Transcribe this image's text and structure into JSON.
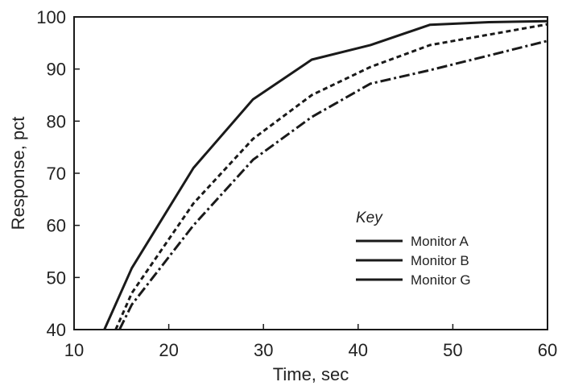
{
  "chart_data": {
    "type": "line",
    "xlabel": "Time, sec",
    "ylabel": "Response, pct",
    "xlim": [
      10,
      60
    ],
    "ylim": [
      40,
      100
    ],
    "xticks": [
      10,
      20,
      30,
      40,
      50,
      60
    ],
    "yticks": [
      40,
      50,
      60,
      70,
      80,
      90,
      100
    ],
    "grid": false,
    "legend": {
      "title": "Key",
      "placement": "lower-right",
      "entries": [
        "Monitor A",
        "Monitor B",
        "Monitor G"
      ]
    },
    "series": [
      {
        "name": "Monitor A",
        "style": "solid",
        "x": [
          13.2,
          16.1,
          22.6,
          28.9,
          35.1,
          41.3,
          47.6,
          53.8,
          60
        ],
        "y": [
          40,
          51.8,
          71,
          84.2,
          91.8,
          94.6,
          98.5,
          99,
          99.2
        ]
      },
      {
        "name": "Monitor B",
        "style": "dashed",
        "x": [
          14.4,
          16.1,
          22.6,
          28.9,
          35.1,
          41.3,
          47.6,
          53.8,
          60
        ],
        "y": [
          40,
          47,
          64.2,
          76.6,
          85,
          90.4,
          94.6,
          96.6,
          98.6
        ]
      },
      {
        "name": "Monitor G",
        "style": "dash-dot",
        "x": [
          14.8,
          16.1,
          22.6,
          28.9,
          35.1,
          41.3,
          47.6,
          53.8,
          60
        ],
        "y": [
          40,
          44.8,
          60,
          72.6,
          80.8,
          87.2,
          89.8,
          92.6,
          95.4
        ]
      }
    ],
    "colors": {
      "line": "#1a1a1a",
      "axis": "#1a1a1a"
    }
  }
}
